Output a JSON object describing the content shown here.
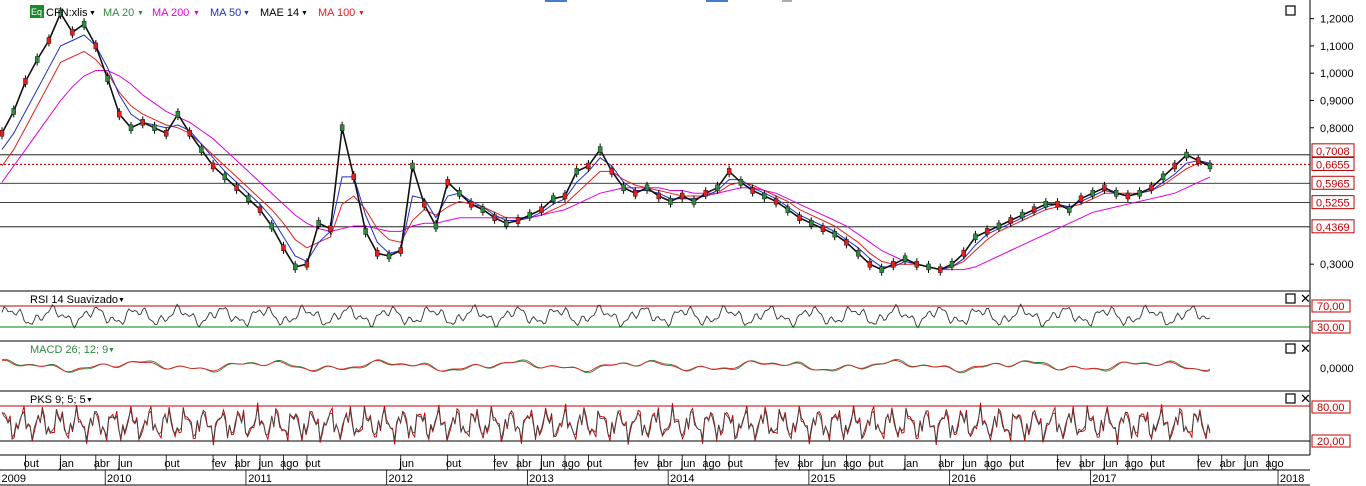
{
  "colors": {
    "ma20": "#2e8b3e",
    "ma200": "#e000e0",
    "ma50": "#2030c8",
    "mae14": "#000000",
    "ma100": "#e02020",
    "rsi_upper": "#c00000",
    "rsi_lower": "#008000",
    "macd": "#2e8b3e",
    "macd_signal": "#e02020",
    "pks": "#c00000"
  },
  "toolbar": {
    "eq_badge": "Eq",
    "ticker": "CFN:xlis",
    "ma20": "MA 20",
    "ma200": "MA 200",
    "ma50": "MA 50",
    "mae14": "MAE 14",
    "ma100": "MA 100"
  },
  "panels": {
    "rsi": {
      "label": "RSI 14 Suavizado",
      "upper": "70,00",
      "lower": "30,00"
    },
    "macd": {
      "label": "MACD 26; 12; 9",
      "zero": "0,0000"
    },
    "pks": {
      "label": "PKS 9; 5; 5",
      "upper": "80,00",
      "lower": "20,00"
    }
  },
  "price_axis": [
    "1,2000",
    "1,1000",
    "1,0000",
    "0,9000",
    "0,8000",
    "0,3000"
  ],
  "price_tags": [
    "0,7008",
    "0,6655",
    "0,5965",
    "0,5255",
    "0,4369"
  ],
  "months": [
    {
      "m": "out",
      "i": 3
    },
    {
      "m": "jan",
      "i": 6
    },
    {
      "m": "abr",
      "i": 9
    },
    {
      "m": "jun",
      "i": 11
    },
    {
      "m": "out",
      "i": 15
    },
    {
      "m": "fev",
      "i": 19
    },
    {
      "m": "abr",
      "i": 21
    },
    {
      "m": "jun",
      "i": 23
    },
    {
      "m": "ago",
      "i": 25
    },
    {
      "m": "out",
      "i": 27
    },
    {
      "m": "jun",
      "i": 35
    },
    {
      "m": "out",
      "i": 39
    },
    {
      "m": "fev",
      "i": 43
    },
    {
      "m": "abr",
      "i": 45
    },
    {
      "m": "jun",
      "i": 47
    },
    {
      "m": "ago",
      "i": 49
    },
    {
      "m": "out",
      "i": 51
    },
    {
      "m": "fev",
      "i": 55
    },
    {
      "m": "abr",
      "i": 57
    },
    {
      "m": "jun",
      "i": 59
    },
    {
      "m": "ago",
      "i": 61
    },
    {
      "m": "out",
      "i": 63
    },
    {
      "m": "fev",
      "i": 67
    },
    {
      "m": "abr",
      "i": 69
    },
    {
      "m": "jun",
      "i": 71
    },
    {
      "m": "ago",
      "i": 73
    },
    {
      "m": "out",
      "i": 75
    },
    {
      "m": "jan",
      "i": 78
    },
    {
      "m": "abr",
      "i": 81
    },
    {
      "m": "jun",
      "i": 83
    },
    {
      "m": "ago",
      "i": 85
    },
    {
      "m": "out",
      "i": 87
    },
    {
      "m": "fev",
      "i": 91
    },
    {
      "m": "abr",
      "i": 93
    },
    {
      "m": "jun",
      "i": 95
    },
    {
      "m": "ago",
      "i": 97
    },
    {
      "m": "out",
      "i": 99
    },
    {
      "m": "fev",
      "i": 103
    },
    {
      "m": "abr",
      "i": 105
    },
    {
      "m": "jun",
      "i": 107
    },
    {
      "m": "ago",
      "i": 109
    }
  ],
  "years": [
    {
      "y": "2009",
      "i": 1
    },
    {
      "y": "2010",
      "i": 10
    },
    {
      "y": "2011",
      "i": 22
    },
    {
      "y": "2012",
      "i": 34
    },
    {
      "y": "2013",
      "i": 46
    },
    {
      "y": "2014",
      "i": 58
    },
    {
      "y": "2015",
      "i": 70
    },
    {
      "y": "2016",
      "i": 82
    },
    {
      "y": "2017",
      "i": 94
    },
    {
      "y": "2018",
      "i": 110
    }
  ],
  "chart_data": {
    "type": "line",
    "x_unit": "month",
    "x_range": [
      "2009-08",
      "2018-09"
    ],
    "y_axis_ticks": [
      1.2,
      1.1,
      1.0,
      0.9,
      0.8,
      0.3
    ],
    "ylim": [
      0.22,
      1.25
    ],
    "price_levels": [
      0.7008,
      0.6655,
      0.5965,
      0.5255,
      0.4369
    ],
    "series": [
      {
        "name": "CFN:xlis",
        "values": [
          0.78,
          0.86,
          0.97,
          1.05,
          1.12,
          1.22,
          1.15,
          1.18,
          1.1,
          0.98,
          0.85,
          0.8,
          0.82,
          0.8,
          0.78,
          0.85,
          0.78,
          0.72,
          0.66,
          0.62,
          0.58,
          0.54,
          0.5,
          0.44,
          0.36,
          0.29,
          0.3,
          0.45,
          0.43,
          0.8,
          0.62,
          0.42,
          0.34,
          0.33,
          0.35,
          0.66,
          0.52,
          0.44,
          0.6,
          0.56,
          0.52,
          0.5,
          0.47,
          0.45,
          0.46,
          0.48,
          0.5,
          0.54,
          0.55,
          0.64,
          0.66,
          0.72,
          0.64,
          0.58,
          0.56,
          0.58,
          0.55,
          0.53,
          0.55,
          0.53,
          0.56,
          0.58,
          0.64,
          0.6,
          0.57,
          0.55,
          0.53,
          0.5,
          0.47,
          0.45,
          0.43,
          0.41,
          0.38,
          0.34,
          0.3,
          0.28,
          0.3,
          0.32,
          0.3,
          0.29,
          0.28,
          0.3,
          0.34,
          0.4,
          0.42,
          0.44,
          0.46,
          0.48,
          0.5,
          0.52,
          0.52,
          0.5,
          0.54,
          0.56,
          0.58,
          0.56,
          0.55,
          0.56,
          0.58,
          0.62,
          0.66,
          0.7,
          0.68,
          0.66
        ]
      },
      {
        "name": "MA 20",
        "values": [
          0.72,
          0.78,
          0.86,
          0.94,
          1.02,
          1.1,
          1.12,
          1.14,
          1.1,
          1.02,
          0.92,
          0.85,
          0.82,
          0.81,
          0.8,
          0.81,
          0.79,
          0.74,
          0.69,
          0.64,
          0.6,
          0.56,
          0.52,
          0.47,
          0.4,
          0.33,
          0.31,
          0.38,
          0.42,
          0.62,
          0.62,
          0.48,
          0.38,
          0.34,
          0.35,
          0.55,
          0.54,
          0.47,
          0.55,
          0.56,
          0.53,
          0.51,
          0.48,
          0.46,
          0.46,
          0.47,
          0.49,
          0.52,
          0.54,
          0.6,
          0.64,
          0.69,
          0.66,
          0.6,
          0.57,
          0.57,
          0.56,
          0.54,
          0.54,
          0.54,
          0.55,
          0.57,
          0.61,
          0.61,
          0.58,
          0.56,
          0.54,
          0.51,
          0.48,
          0.46,
          0.44,
          0.42,
          0.39,
          0.36,
          0.32,
          0.29,
          0.29,
          0.31,
          0.3,
          0.29,
          0.28,
          0.29,
          0.32,
          0.37,
          0.41,
          0.43,
          0.45,
          0.47,
          0.49,
          0.51,
          0.52,
          0.51,
          0.53,
          0.55,
          0.57,
          0.56,
          0.55,
          0.56,
          0.57,
          0.6,
          0.63,
          0.67,
          0.68,
          0.67
        ]
      },
      {
        "name": "MA 200",
        "values": [
          0.6,
          0.66,
          0.72,
          0.78,
          0.84,
          0.9,
          0.95,
          0.99,
          1.01,
          1.01,
          0.99,
          0.96,
          0.92,
          0.89,
          0.86,
          0.84,
          0.82,
          0.79,
          0.76,
          0.72,
          0.68,
          0.64,
          0.6,
          0.56,
          0.52,
          0.48,
          0.45,
          0.43,
          0.42,
          0.43,
          0.44,
          0.44,
          0.43,
          0.42,
          0.42,
          0.44,
          0.45,
          0.45,
          0.46,
          0.47,
          0.47,
          0.47,
          0.47,
          0.47,
          0.47,
          0.47,
          0.48,
          0.49,
          0.5,
          0.52,
          0.54,
          0.56,
          0.57,
          0.58,
          0.58,
          0.58,
          0.58,
          0.57,
          0.57,
          0.56,
          0.56,
          0.56,
          0.57,
          0.58,
          0.58,
          0.57,
          0.56,
          0.54,
          0.52,
          0.5,
          0.48,
          0.46,
          0.44,
          0.41,
          0.38,
          0.35,
          0.33,
          0.31,
          0.3,
          0.29,
          0.28,
          0.28,
          0.28,
          0.29,
          0.31,
          0.33,
          0.35,
          0.37,
          0.39,
          0.41,
          0.43,
          0.45,
          0.47,
          0.49,
          0.5,
          0.51,
          0.52,
          0.53,
          0.54,
          0.55,
          0.56,
          0.58,
          0.6,
          0.62
        ]
      },
      {
        "name": "MA 100",
        "values": [
          0.66,
          0.72,
          0.8,
          0.88,
          0.96,
          1.04,
          1.06,
          1.08,
          1.05,
          1.0,
          0.93,
          0.88,
          0.85,
          0.83,
          0.81,
          0.8,
          0.78,
          0.74,
          0.7,
          0.66,
          0.62,
          0.58,
          0.54,
          0.5,
          0.45,
          0.39,
          0.36,
          0.38,
          0.4,
          0.52,
          0.55,
          0.5,
          0.43,
          0.39,
          0.38,
          0.46,
          0.5,
          0.48,
          0.51,
          0.53,
          0.52,
          0.51,
          0.49,
          0.47,
          0.47,
          0.47,
          0.48,
          0.5,
          0.52,
          0.56,
          0.6,
          0.64,
          0.64,
          0.61,
          0.59,
          0.58,
          0.57,
          0.56,
          0.55,
          0.55,
          0.55,
          0.56,
          0.59,
          0.6,
          0.59,
          0.57,
          0.55,
          0.53,
          0.5,
          0.48,
          0.46,
          0.44,
          0.41,
          0.38,
          0.34,
          0.31,
          0.3,
          0.3,
          0.3,
          0.29,
          0.28,
          0.29,
          0.31,
          0.35,
          0.39,
          0.42,
          0.44,
          0.46,
          0.48,
          0.5,
          0.51,
          0.51,
          0.52,
          0.54,
          0.56,
          0.56,
          0.56,
          0.56,
          0.57,
          0.59,
          0.62,
          0.65,
          0.67,
          0.67
        ]
      }
    ]
  }
}
